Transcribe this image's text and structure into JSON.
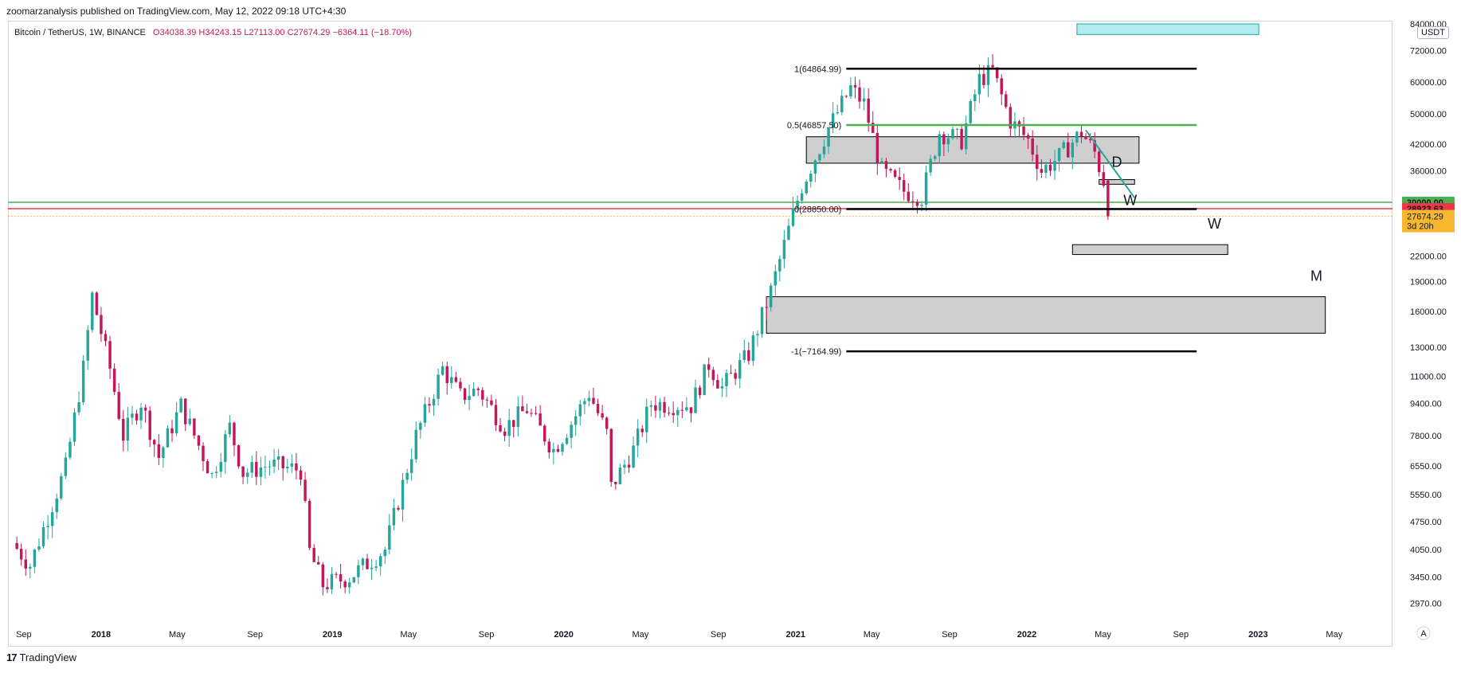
{
  "header": {
    "publish_line": "zoomarzanalysis published on TradingView.com, May 12, 2022 09:18 UTC+4:30"
  },
  "legend": {
    "symbol": "Bitcoin / TetherUS, 1W, BINANCE",
    "open": "O34038.39",
    "high": "H34243.15",
    "low": "L27113.00",
    "close": "C27674.29",
    "change": "−6364.11 (−18.70%)"
  },
  "currency_badge": "USDT",
  "footer": {
    "logo_mark": "17",
    "brand": "TradingView"
  },
  "colors": {
    "up": "#26a69a",
    "down": "#c2185b",
    "green_line": "#4caf50",
    "red_line": "#f23645",
    "price_badge": "#f7b731",
    "teal_box": "#b2ebf2"
  },
  "chart_data": {
    "type": "candlestick",
    "symbol": "BTCUSDT",
    "interval": "1W",
    "scale": "log",
    "ylim": [
      2700,
      84000
    ],
    "y_tick_labels": [
      "84000.00",
      "72000.00",
      "60000.00",
      "50000.00",
      "42000.00",
      "36000.00",
      "30000.00",
      "28923.63",
      "27674.29",
      "22000.00",
      "19000.00",
      "16000.00",
      "13000.00",
      "11000.00",
      "9400.00",
      "7800.00",
      "6550.00",
      "5550.00",
      "4750.00",
      "4050.00",
      "3450.00",
      "2970.00"
    ],
    "x_tick_labels": [
      "Sep",
      "2018",
      "May",
      "Sep",
      "2019",
      "May",
      "Sep",
      "2020",
      "May",
      "Sep",
      "2021",
      "May",
      "Sep",
      "2022",
      "May",
      "Sep",
      "2023",
      "May"
    ],
    "x_ticks": [
      {
        "label": "Sep",
        "date": "2017-09-01"
      },
      {
        "label": "2018",
        "date": "2018-01-01"
      },
      {
        "label": "May",
        "date": "2018-05-01"
      },
      {
        "label": "Sep",
        "date": "2018-09-01"
      },
      {
        "label": "2019",
        "date": "2019-01-01"
      },
      {
        "label": "May",
        "date": "2019-05-01"
      },
      {
        "label": "Sep",
        "date": "2019-09-01"
      },
      {
        "label": "2020",
        "date": "2020-01-01"
      },
      {
        "label": "May",
        "date": "2020-05-01"
      },
      {
        "label": "Sep",
        "date": "2020-09-01"
      },
      {
        "label": "2021",
        "date": "2021-01-01"
      },
      {
        "label": "May",
        "date": "2021-05-01"
      },
      {
        "label": "Sep",
        "date": "2021-09-01"
      },
      {
        "label": "2022",
        "date": "2022-01-01"
      },
      {
        "label": "May",
        "date": "2022-05-01"
      },
      {
        "label": "Sep",
        "date": "2022-09-01"
      },
      {
        "label": "2023",
        "date": "2023-01-01"
      },
      {
        "label": "May",
        "date": "2023-05-01"
      }
    ],
    "path_points": [
      [
        "2017-08-14",
        4200
      ],
      [
        "2017-09-11",
        3700
      ],
      [
        "2017-10-09",
        4900
      ],
      [
        "2017-11-06",
        6500
      ],
      [
        "2017-12-04",
        11500
      ],
      [
        "2017-12-18",
        17500
      ],
      [
        "2018-01-15",
        11500
      ],
      [
        "2018-02-05",
        7800
      ],
      [
        "2018-03-05",
        9500
      ],
      [
        "2018-04-02",
        6900
      ],
      [
        "2018-05-07",
        9300
      ],
      [
        "2018-06-25",
        6200
      ],
      [
        "2018-07-23",
        8200
      ],
      [
        "2018-08-13",
        6300
      ],
      [
        "2018-09-24",
        6600
      ],
      [
        "2018-11-12",
        6400
      ],
      [
        "2018-11-26",
        4000
      ],
      [
        "2018-12-17",
        3300
      ],
      [
        "2019-01-28",
        3450
      ],
      [
        "2019-03-25",
        4050
      ],
      [
        "2019-05-13",
        7800
      ],
      [
        "2019-06-24",
        11500
      ],
      [
        "2019-07-22",
        9800
      ],
      [
        "2019-08-19",
        10200
      ],
      [
        "2019-09-30",
        8200
      ],
      [
        "2019-11-04",
        9100
      ],
      [
        "2019-12-16",
        7200
      ],
      [
        "2020-01-13",
        8400
      ],
      [
        "2020-02-10",
        10000
      ],
      [
        "2020-03-09",
        7900
      ],
      [
        "2020-03-16",
        5800
      ],
      [
        "2020-04-20",
        7200
      ],
      [
        "2020-05-18",
        9400
      ],
      [
        "2020-07-20",
        9300
      ],
      [
        "2020-08-17",
        11800
      ],
      [
        "2020-09-07",
        10300
      ],
      [
        "2020-10-19",
        12500
      ],
      [
        "2020-11-23",
        18000
      ],
      [
        "2020-12-28",
        28000
      ],
      [
        "2021-01-11",
        33000
      ],
      [
        "2021-02-22",
        46000
      ],
      [
        "2021-03-29",
        58000
      ],
      [
        "2021-04-19",
        53000
      ],
      [
        "2021-05-17",
        36000
      ],
      [
        "2021-06-21",
        32000
      ],
      [
        "2021-07-19",
        31000
      ],
      [
        "2021-08-16",
        45000
      ],
      [
        "2021-09-20",
        43000
      ],
      [
        "2021-10-18",
        61000
      ],
      [
        "2021-11-08",
        64000
      ],
      [
        "2021-12-06",
        48000
      ],
      [
        "2022-01-03",
        43000
      ],
      [
        "2022-01-24",
        36000
      ],
      [
        "2022-02-21",
        39000
      ],
      [
        "2022-03-28",
        45000
      ],
      [
        "2022-04-18",
        40000
      ],
      [
        "2022-05-02",
        34000
      ],
      [
        "2022-05-09",
        27674.29
      ]
    ],
    "last_candle": {
      "date": "2022-05-09",
      "open": 34038.39,
      "high": 34243.15,
      "low": 27113.0,
      "close": 27674.29
    },
    "price_labels": {
      "green_line": {
        "value": 30000.0,
        "label": "30000.00"
      },
      "red_line": {
        "value": 28923.63,
        "label": "28923.63"
      },
      "current": {
        "value": 27674.29,
        "label": "27674.29",
        "countdown": "3d 20h"
      }
    },
    "fib_levels": [
      {
        "label": "1(64864.99)",
        "value": 64864.99,
        "color": "#000000",
        "start": "2021-03-22",
        "end": "2022-09-26"
      },
      {
        "label": "0.5(46857.50)",
        "value": 46857.5,
        "color": "#4caf50",
        "start": "2021-03-22",
        "end": "2022-09-26"
      },
      {
        "label": "0(28850.00)",
        "value": 28850.0,
        "color": "#000000",
        "start": "2021-03-22",
        "end": "2022-09-26"
      },
      {
        "label": "-1(−7164.99)",
        "value": 12700,
        "color": "#000000",
        "start": "2021-03-22",
        "end": "2022-09-26"
      }
    ],
    "zones": [
      {
        "name": "resistance-zone",
        "from": "2021-01-18",
        "to": "2022-06-27",
        "low": 37600,
        "high": 43800
      },
      {
        "name": "small-zone-d",
        "from": "2022-04-25",
        "to": "2022-06-20",
        "low": 33300,
        "high": 34200
      },
      {
        "name": "w-target-zone",
        "from": "2022-03-14",
        "to": "2022-11-14",
        "low": 22200,
        "high": 23500
      },
      {
        "name": "m-target-zone",
        "from": "2020-11-16",
        "to": "2023-04-17",
        "low": 14100,
        "high": 17400
      },
      {
        "name": "top-teal-box",
        "from": "2022-03-21",
        "to": "2023-01-02",
        "low": 79000,
        "high": 84000
      }
    ],
    "pattern_line": {
      "points": [
        [
          "2022-04-04",
          45500
        ],
        [
          "2022-06-20",
          30800
        ]
      ],
      "color": "#26a69a"
    },
    "annotations": [
      {
        "text": "D",
        "date": "2022-05-23",
        "value": 36800
      },
      {
        "text": "W",
        "date": "2022-06-13",
        "value": 29500
      },
      {
        "text": "W",
        "date": "2022-10-24",
        "value": 25800
      },
      {
        "text": "M",
        "date": "2023-04-03",
        "value": 19100
      }
    ],
    "horizontal_lines": [
      {
        "name": "green-line",
        "value": 30000,
        "color": "#4caf50"
      },
      {
        "name": "red-line",
        "value": 28923.63,
        "color": "#f23645"
      },
      {
        "name": "current-price-dotted",
        "value": 27674.29,
        "color": "#f7b731"
      }
    ],
    "scale_badge": "A"
  }
}
